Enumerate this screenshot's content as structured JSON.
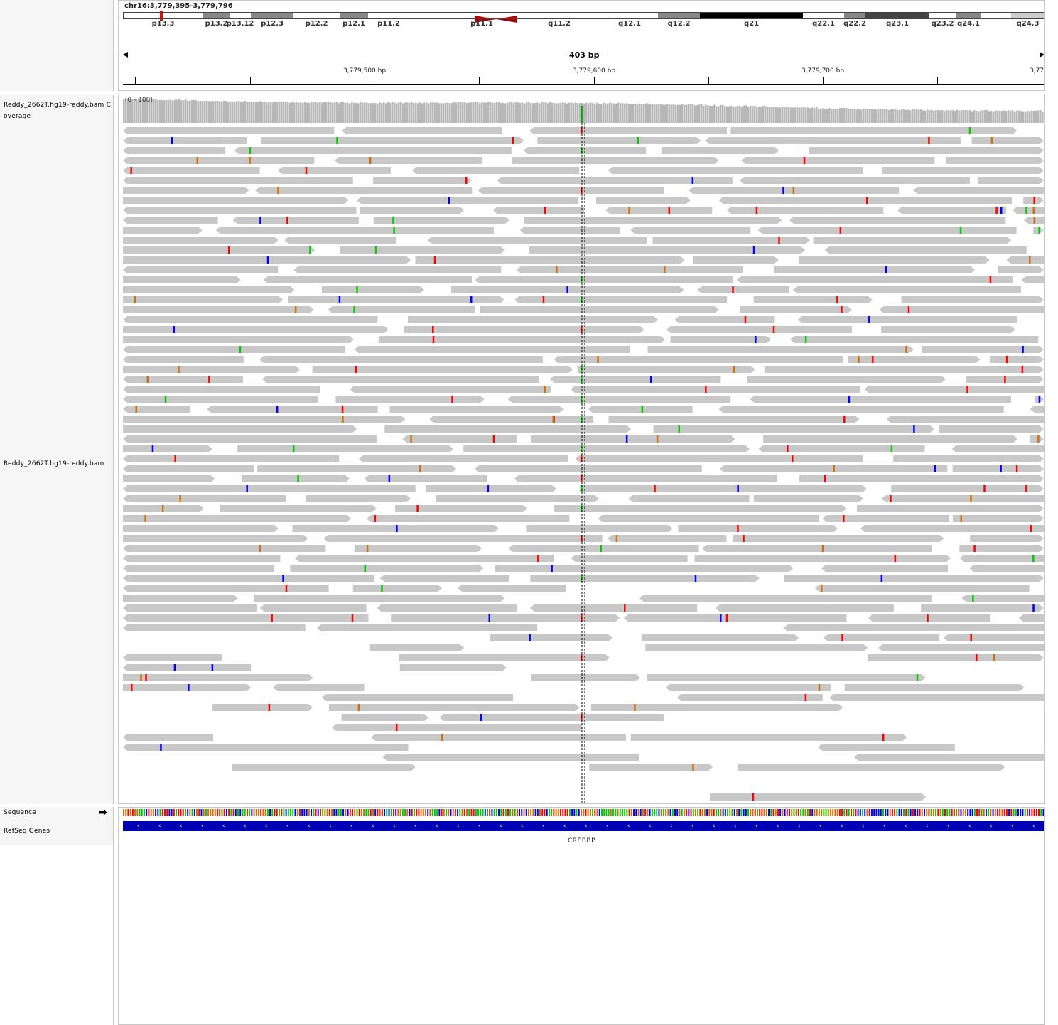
{
  "locus": "chr16:3,779,395-3,779,796",
  "ruler": {
    "span_label": "403 bp",
    "ticks": [
      "3,779,500 bp",
      "3,779,600 bp",
      "3,779,700 bp",
      "3,77"
    ]
  },
  "ideogram": {
    "bands": [
      {
        "name": "p13.3",
        "shade": "#ffffff"
      },
      {
        "name": "p13.2",
        "shade": "#888888"
      },
      {
        "name": "p13.12",
        "shade": "#ffffff"
      },
      {
        "name": "p12.3",
        "shade": "#888888"
      },
      {
        "name": "p12.2",
        "shade": "#ffffff"
      },
      {
        "name": "p12.1",
        "shade": "#888888"
      },
      {
        "name": "p11.2",
        "shade": "#ffffff"
      },
      {
        "name": "p11.1",
        "shade": "#c00000"
      },
      {
        "name": "q11.2",
        "shade": "#ffffff"
      },
      {
        "name": "q12.1",
        "shade": "#ffffff"
      },
      {
        "name": "q12.2",
        "shade": "#888888"
      },
      {
        "name": "q21",
        "shade": "#000000"
      },
      {
        "name": "q22.1",
        "shade": "#ffffff"
      },
      {
        "name": "q22.2",
        "shade": "#888888"
      },
      {
        "name": "q23.1",
        "shade": "#444444"
      },
      {
        "name": "q23.2",
        "shade": "#ffffff"
      },
      {
        "name": "q24.1",
        "shade": "#888888"
      },
      {
        "name": "q24.3",
        "shade": "#cccccc"
      }
    ],
    "current_region_color": "#ff0000"
  },
  "tracks": {
    "coverage_label": "Reddy_2662T.hg19-reddy.bam Coverage",
    "coverage_range": "[0 - 100]",
    "alignment_label": "Reddy_2662T.hg19-reddy.bam",
    "sequence_label": "Sequence",
    "refseq_label": "RefSeq Genes",
    "gene_name": "CREBBP"
  },
  "colors": {
    "read": "#c8c8c8",
    "coverage": "#b8b8b8",
    "mismatch_A": "#00cc00",
    "mismatch_C": "#0000ff",
    "mismatch_G": "#d17105",
    "mismatch_T": "#ff0000",
    "gene": "#0000b4"
  }
}
